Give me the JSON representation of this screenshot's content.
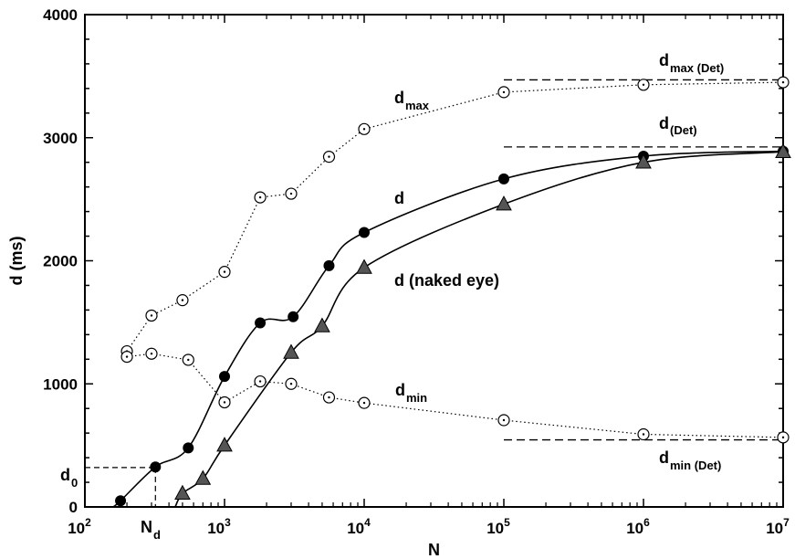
{
  "chart_data": {
    "type": "scatter",
    "title": "",
    "xlabel": "N",
    "ylabel": "d (ms)",
    "x_scale": "log",
    "xlim": [
      100,
      10000000
    ],
    "ylim": [
      0,
      4000
    ],
    "x_tick_labels": [
      {
        "base": "10",
        "exp": "2"
      },
      {
        "base": "10",
        "exp": "3"
      },
      {
        "base": "10",
        "exp": "4"
      },
      {
        "base": "10",
        "exp": "5"
      },
      {
        "base": "10",
        "exp": "6"
      },
      {
        "base": "10",
        "exp": "7"
      }
    ],
    "y_ticks": [
      0,
      1000,
      2000,
      3000,
      4000
    ],
    "y_tick_labels": [
      "0",
      "1000",
      "2000",
      "3000",
      "4000"
    ],
    "grid": false,
    "series": [
      {
        "name": "d_max",
        "marker": "open-circle-dot",
        "line": "dotted",
        "points": [
          [
            200,
            1265
          ],
          [
            300,
            1555
          ],
          [
            500,
            1680
          ],
          [
            1000,
            1910
          ],
          [
            1800,
            2515
          ],
          [
            3000,
            2545
          ],
          [
            5600,
            2845
          ],
          [
            10000,
            3070
          ],
          [
            100000,
            3370
          ],
          [
            1000000,
            3430
          ],
          [
            10000000,
            3450
          ]
        ]
      },
      {
        "name": "d_min",
        "marker": "open-circle-dot",
        "line": "dotted",
        "points": [
          [
            200,
            1220
          ],
          [
            300,
            1245
          ],
          [
            550,
            1195
          ],
          [
            1000,
            850
          ],
          [
            1800,
            1020
          ],
          [
            3000,
            1000
          ],
          [
            5600,
            890
          ],
          [
            10000,
            845
          ],
          [
            100000,
            705
          ],
          [
            1000000,
            590
          ],
          [
            10000000,
            565
          ]
        ]
      },
      {
        "name": "d",
        "marker": "filled-circle",
        "line": "solid-fit",
        "points": [
          [
            180,
            50
          ],
          [
            320,
            325
          ],
          [
            550,
            480
          ],
          [
            1000,
            1060
          ],
          [
            1800,
            1495
          ],
          [
            3100,
            1545
          ],
          [
            5600,
            1960
          ],
          [
            10000,
            2230
          ],
          [
            100000,
            2665
          ],
          [
            1000000,
            2850
          ],
          [
            10000000,
            2890
          ]
        ]
      },
      {
        "name": "d (naked eye)",
        "marker": "triangle",
        "line": "solid-fit",
        "points": [
          [
            500,
            110
          ],
          [
            700,
            230
          ],
          [
            1000,
            500
          ],
          [
            3000,
            1255
          ],
          [
            5000,
            1470
          ],
          [
            10000,
            1945
          ],
          [
            100000,
            2460
          ],
          [
            1000000,
            2800
          ],
          [
            10000000,
            2885
          ]
        ]
      }
    ],
    "asymptotes": [
      {
        "label_main": "d",
        "label_sub": "max (Det)",
        "y": 3470,
        "x_from": 100000,
        "x_to": 10000000
      },
      {
        "label_main": "d",
        "label_sub": "(Det)",
        "y": 2925,
        "x_from": 100000,
        "x_to": 10000000
      },
      {
        "label_main": "d",
        "label_sub": "min (Det)",
        "y": 545,
        "x_from": 100000,
        "x_to": 10000000
      }
    ],
    "reference": {
      "d0_label": "d",
      "d0_sub": "0",
      "nd_label": "N",
      "nd_sub": "d",
      "x": 320,
      "y": 320
    },
    "annotations": [
      {
        "main": "d",
        "sub": "max",
        "near": "d_max"
      },
      {
        "main": "d",
        "sub": "min",
        "near": "d_min"
      },
      {
        "main": "d",
        "sub": "",
        "near": "d"
      },
      {
        "main": "d (naked eye)",
        "sub": "",
        "near": "d (naked eye)"
      }
    ]
  }
}
